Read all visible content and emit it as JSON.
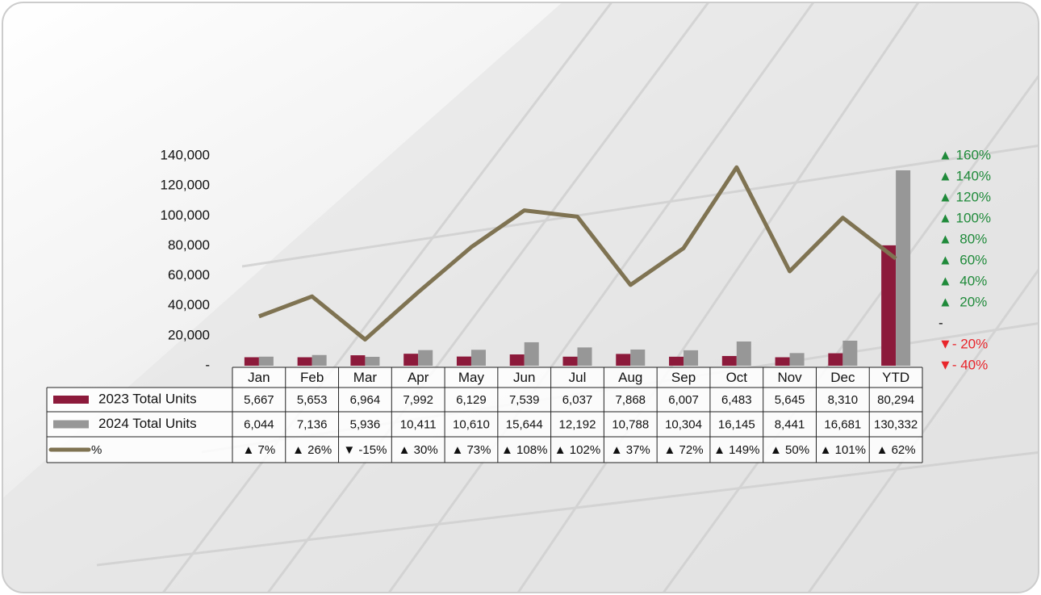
{
  "chart_data": {
    "type": "bar",
    "categories": [
      "Jan",
      "Feb",
      "Mar",
      "Apr",
      "May",
      "Jun",
      "Jul",
      "Aug",
      "Sep",
      "Oct",
      "Nov",
      "Dec",
      "YTD"
    ],
    "series": [
      {
        "name": "2023 Total Units",
        "color": "#8c1a3b",
        "values": [
          5667,
          5653,
          6964,
          7992,
          6129,
          7539,
          6037,
          7868,
          6007,
          6483,
          5645,
          8310,
          80294
        ],
        "value_labels": [
          "5,667",
          "5,653",
          "6,964",
          "7,992",
          "6,129",
          "7,539",
          "6,037",
          "7,868",
          "6,007",
          "6,483",
          "5,645",
          "8,310",
          "80,294"
        ]
      },
      {
        "name": "2024 Total Units",
        "color": "#979797",
        "values": [
          6044,
          7136,
          5936,
          10411,
          10610,
          15644,
          12192,
          10788,
          10304,
          16145,
          8441,
          16681,
          130332
        ],
        "value_labels": [
          "6,044",
          "7,136",
          "5,936",
          "10,411",
          "10,610",
          "15,644",
          "12,192",
          "10,788",
          "10,304",
          "16,145",
          "8,441",
          "16,681",
          "130,332"
        ]
      },
      {
        "name": "%",
        "type": "line",
        "axis": "y2",
        "color": "#7f7352",
        "values": [
          7,
          26,
          -15,
          30,
          73,
          108,
          102,
          37,
          72,
          149,
          50,
          101,
          62
        ],
        "value_labels": [
          "▲ 7%",
          "▲ 26%",
          "▼ -15%",
          "▲ 30%",
          "▲ 73%",
          "▲ 108%",
          "▲ 102%",
          "▲ 37%",
          "▲ 72%",
          "▲ 149%",
          "▲ 50%",
          "▲ 101%",
          "▲ 62%"
        ]
      }
    ],
    "ylim": [
      0,
      140000
    ],
    "yticks": [
      {
        "value": 0,
        "label": "-"
      },
      {
        "value": 20000,
        "label": "20,000"
      },
      {
        "value": 40000,
        "label": "40,000"
      },
      {
        "value": 60000,
        "label": "60,000"
      },
      {
        "value": 80000,
        "label": "80,000"
      },
      {
        "value": 100000,
        "label": "100,000"
      },
      {
        "value": 120000,
        "label": "120,000"
      },
      {
        "value": 140000,
        "label": "140,000"
      }
    ],
    "y2lim": [
      -40,
      160
    ],
    "y2ticks": [
      {
        "value": -40,
        "label": "▼- 40%"
      },
      {
        "value": -20,
        "label": "▼- 20%"
      },
      {
        "value": 0,
        "label": "-"
      },
      {
        "value": 20,
        "label": "▲  20%"
      },
      {
        "value": 40,
        "label": "▲  40%"
      },
      {
        "value": 60,
        "label": "▲  60%"
      },
      {
        "value": 80,
        "label": "▲  80%"
      },
      {
        "value": 100,
        "label": "▲ 100%"
      },
      {
        "value": 120,
        "label": "▲ 120%"
      },
      {
        "value": 140,
        "label": "▲ 140%"
      },
      {
        "value": 160,
        "label": "▲ 160%"
      }
    ]
  }
}
